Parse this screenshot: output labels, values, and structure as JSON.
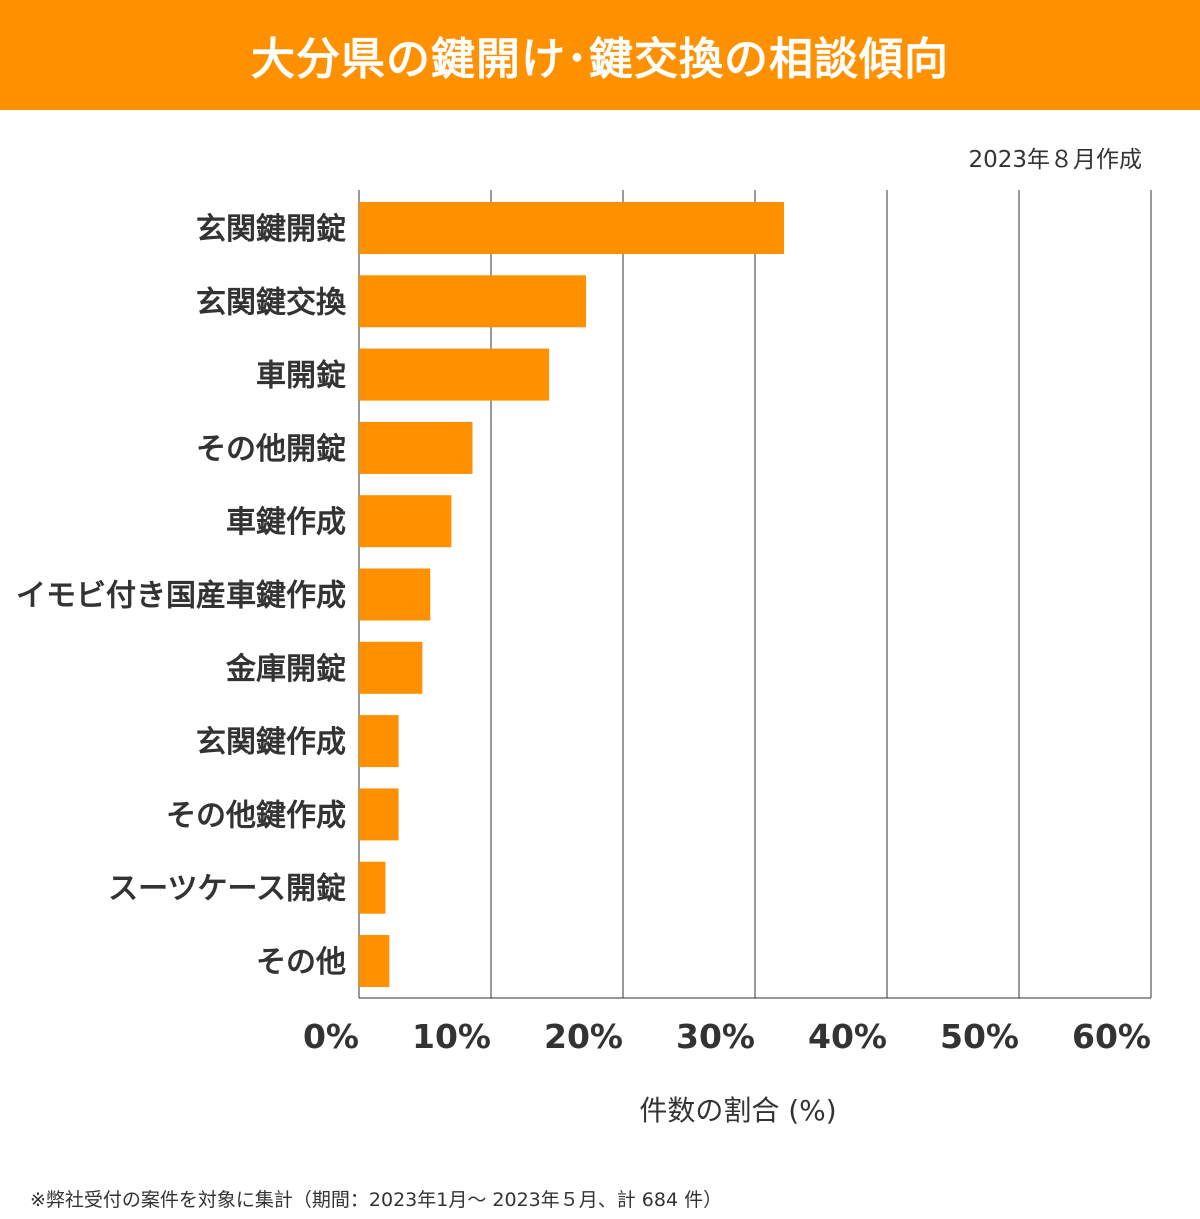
{
  "header": {
    "title": "大分県の鍵開け･鍵交換の相談傾向"
  },
  "date_note": "2023年８月作成",
  "footnote": "※弊社受付の案件を対象に集計（期間：2023年1月～ 2023年５月、計 684 件）",
  "colors": {
    "accent": "#FF9000",
    "bar": "#FF9000",
    "text": "#333333",
    "grid": "#333333"
  },
  "chart_data": {
    "type": "bar",
    "orientation": "horizontal",
    "categories": [
      "玄関鍵開錠",
      "玄関鍵交換",
      "車開錠",
      "その他開錠",
      "車鍵作成",
      "イモビ付き国産車鍵作成",
      "金庫開錠",
      "玄関鍵作成",
      "その他鍵作成",
      "スーツケース開錠",
      "その他"
    ],
    "values": [
      32.2,
      17.2,
      14.4,
      8.6,
      7.0,
      5.4,
      4.8,
      3.0,
      3.0,
      2.0,
      2.3
    ],
    "xlabel": "件数の割合 (%)",
    "xlim": [
      0,
      60
    ],
    "ticks": [
      0,
      10,
      20,
      30,
      40,
      50,
      60
    ],
    "tick_labels": [
      "0%",
      "10%",
      "20%",
      "30%",
      "40%",
      "50%",
      "60%"
    ],
    "grid": true
  }
}
